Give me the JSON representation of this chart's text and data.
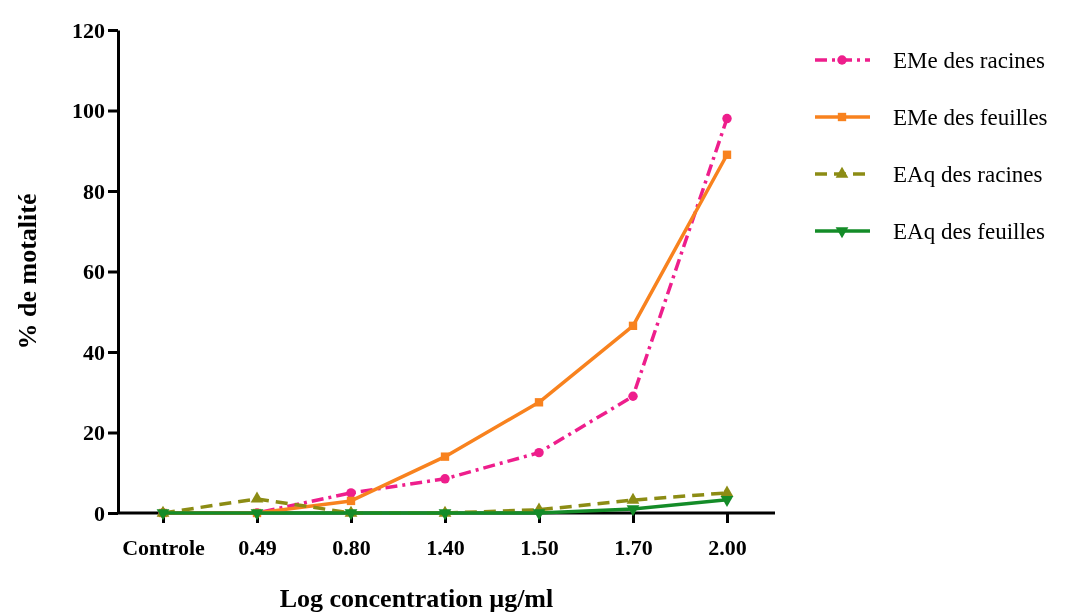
{
  "chart_data": {
    "type": "line",
    "xlabel": "Log concentration µg/ml",
    "ylabel": "% de motalité",
    "categories": [
      "Controle",
      "0.49",
      "0.80",
      "1.40",
      "1.50",
      "1.70",
      "2.00"
    ],
    "ylim": [
      0,
      120
    ],
    "yticks": [
      0,
      20,
      40,
      60,
      80,
      100,
      120
    ],
    "grid": false,
    "legend": "top right",
    "series": [
      {
        "name": "EMe des racines",
        "color": "#ee1e8c",
        "marker": "circle",
        "line_style": "dashdot",
        "values": [
          0,
          0,
          5,
          8.5,
          15,
          29,
          98
        ]
      },
      {
        "name": "EMe des feuilles",
        "color": "#f8821e",
        "marker": "square",
        "line_style": "solid",
        "values": [
          0,
          0,
          3,
          14,
          27.5,
          46.5,
          89
        ]
      },
      {
        "name": "EAq des racines",
        "color": "#8c8c14",
        "marker": "triangle",
        "line_style": "dashed",
        "values": [
          0,
          3.5,
          0,
          0,
          0.8,
          3.2,
          5
        ]
      },
      {
        "name": "EAq des feuilles",
        "color": "#148c28",
        "marker": "triangle-down",
        "line_style": "solid",
        "values": [
          0,
          0,
          0,
          0,
          0,
          1,
          3.3
        ]
      }
    ]
  }
}
